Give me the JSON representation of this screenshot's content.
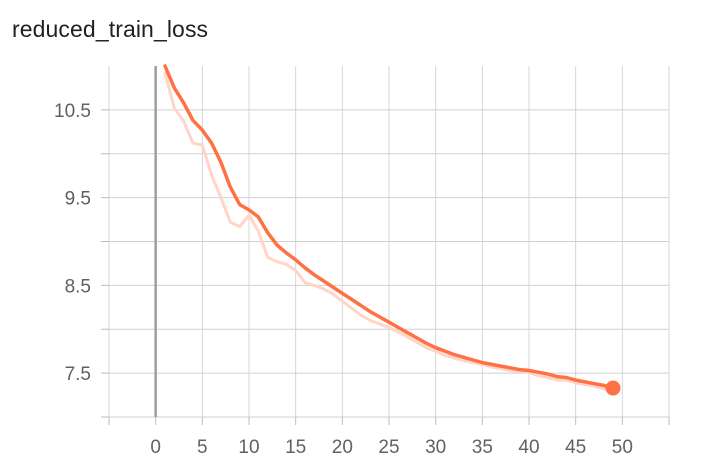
{
  "card": {
    "title": "reduced_train_loss"
  },
  "chart_data": {
    "type": "line",
    "title": "reduced_train_loss",
    "xlabel": "",
    "ylabel": "",
    "xlim": [
      -5,
      55
    ],
    "ylim": [
      7.0,
      11.0
    ],
    "x_ticks": [
      "0",
      "5",
      "10",
      "15",
      "20",
      "25",
      "30",
      "35",
      "40",
      "45",
      "50"
    ],
    "x_tick_values": [
      0,
      5,
      10,
      15,
      20,
      25,
      30,
      35,
      40,
      45,
      50
    ],
    "y_ticks": [
      "10.5",
      "9.5",
      "8.5",
      "7.5"
    ],
    "y_tick_values": [
      10.5,
      9.5,
      8.5,
      7.5
    ],
    "y_minor_ticks": [
      7.0,
      8.0,
      9.0,
      10.0
    ],
    "grid": true,
    "legend": "none",
    "series": [
      {
        "role": "smoothed",
        "color": "#ff7043",
        "x": [
          1,
          2,
          3,
          4,
          5,
          6,
          7,
          8,
          9,
          10,
          11,
          12,
          13,
          14,
          15,
          16,
          17,
          18,
          19,
          20,
          21,
          22,
          23,
          24,
          25,
          26,
          27,
          28,
          29,
          30,
          31,
          32,
          33,
          34,
          35,
          36,
          37,
          38,
          39,
          40,
          41,
          42,
          43,
          44,
          45,
          46,
          47,
          48,
          49
        ],
        "values": [
          11.0,
          10.75,
          10.58,
          10.38,
          10.27,
          10.12,
          9.9,
          9.62,
          9.42,
          9.36,
          9.28,
          9.1,
          8.96,
          8.87,
          8.79,
          8.7,
          8.62,
          8.55,
          8.48,
          8.41,
          8.34,
          8.27,
          8.2,
          8.14,
          8.08,
          8.02,
          7.96,
          7.9,
          7.84,
          7.79,
          7.75,
          7.71,
          7.68,
          7.65,
          7.62,
          7.6,
          7.58,
          7.56,
          7.54,
          7.53,
          7.51,
          7.49,
          7.46,
          7.45,
          7.42,
          7.4,
          7.38,
          7.36,
          7.33
        ]
      },
      {
        "role": "raw",
        "color": "#ffd5c7",
        "x": [
          1,
          2,
          3,
          4,
          5,
          6,
          7,
          8,
          9,
          10,
          11,
          12,
          13,
          14,
          15,
          16,
          17,
          18,
          19,
          20,
          21,
          22,
          23,
          24,
          25,
          26,
          27,
          28,
          29,
          30,
          31,
          32,
          33,
          34,
          35,
          36,
          37,
          38,
          39,
          40,
          41,
          42,
          43,
          44,
          45,
          46,
          47,
          48,
          49
        ],
        "values": [
          10.92,
          10.52,
          10.37,
          10.12,
          10.1,
          9.75,
          9.5,
          9.22,
          9.17,
          9.3,
          9.12,
          8.82,
          8.77,
          8.74,
          8.67,
          8.53,
          8.5,
          8.46,
          8.4,
          8.32,
          8.24,
          8.16,
          8.1,
          8.06,
          8.02,
          7.97,
          7.91,
          7.85,
          7.79,
          7.75,
          7.7,
          7.67,
          7.64,
          7.62,
          7.6,
          7.57,
          7.55,
          7.53,
          7.52,
          7.51,
          7.47,
          7.45,
          7.42,
          7.42,
          7.39,
          7.37,
          7.35,
          7.32,
          7.33
        ]
      }
    ],
    "last_point": {
      "x": 49,
      "y": 7.33
    }
  }
}
